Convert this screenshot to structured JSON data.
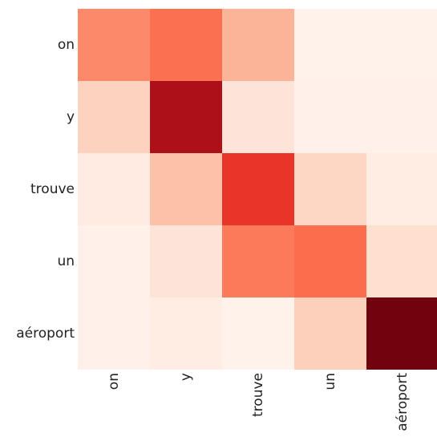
{
  "chart_data": {
    "type": "heatmap",
    "title": "",
    "xlabel": "",
    "ylabel": "",
    "x_labels": [
      "on",
      "y",
      "trouve",
      "un",
      "aéroport"
    ],
    "y_labels": [
      "on",
      "y",
      "trouve",
      "un",
      "aéroport"
    ],
    "values": [
      [
        0.4,
        0.48,
        0.27,
        0.02,
        0.02
      ],
      [
        0.17,
        0.85,
        0.1,
        0.03,
        0.03
      ],
      [
        0.06,
        0.23,
        0.65,
        0.16,
        0.05
      ],
      [
        0.03,
        0.1,
        0.45,
        0.49,
        0.13
      ],
      [
        0.03,
        0.05,
        0.02,
        0.18,
        0.98
      ]
    ],
    "value_range": [
      0,
      1
    ],
    "colormap": "Reds",
    "grid": false,
    "legend": "none"
  }
}
